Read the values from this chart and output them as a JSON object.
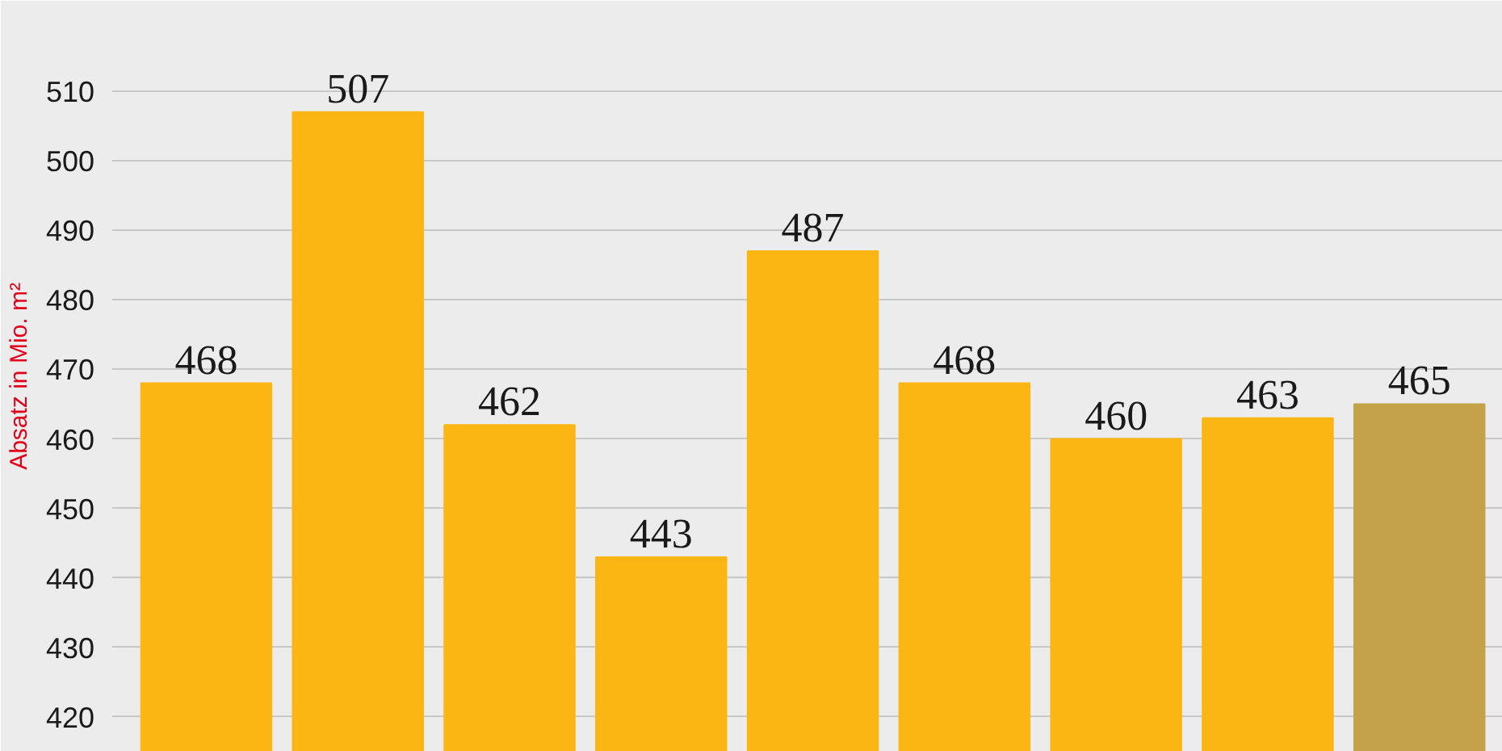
{
  "chart_data": {
    "type": "bar",
    "ylabel": "Absatz in Mio. m²",
    "categories": [
      null,
      null,
      null,
      null,
      null,
      null,
      null,
      null,
      null
    ],
    "values": [
      468,
      507,
      462,
      443,
      487,
      468,
      460,
      463,
      465
    ],
    "colors": [
      "#fbb614",
      "#fbb614",
      "#fbb614",
      "#fbb614",
      "#fbb614",
      "#fbb614",
      "#fbb614",
      "#fbb614",
      "#c4a24a"
    ],
    "ylim": [
      415,
      523
    ],
    "yticks": [
      420,
      430,
      440,
      450,
      460,
      470,
      480,
      490,
      500,
      510
    ],
    "grid": "y",
    "data_labels": true
  }
}
